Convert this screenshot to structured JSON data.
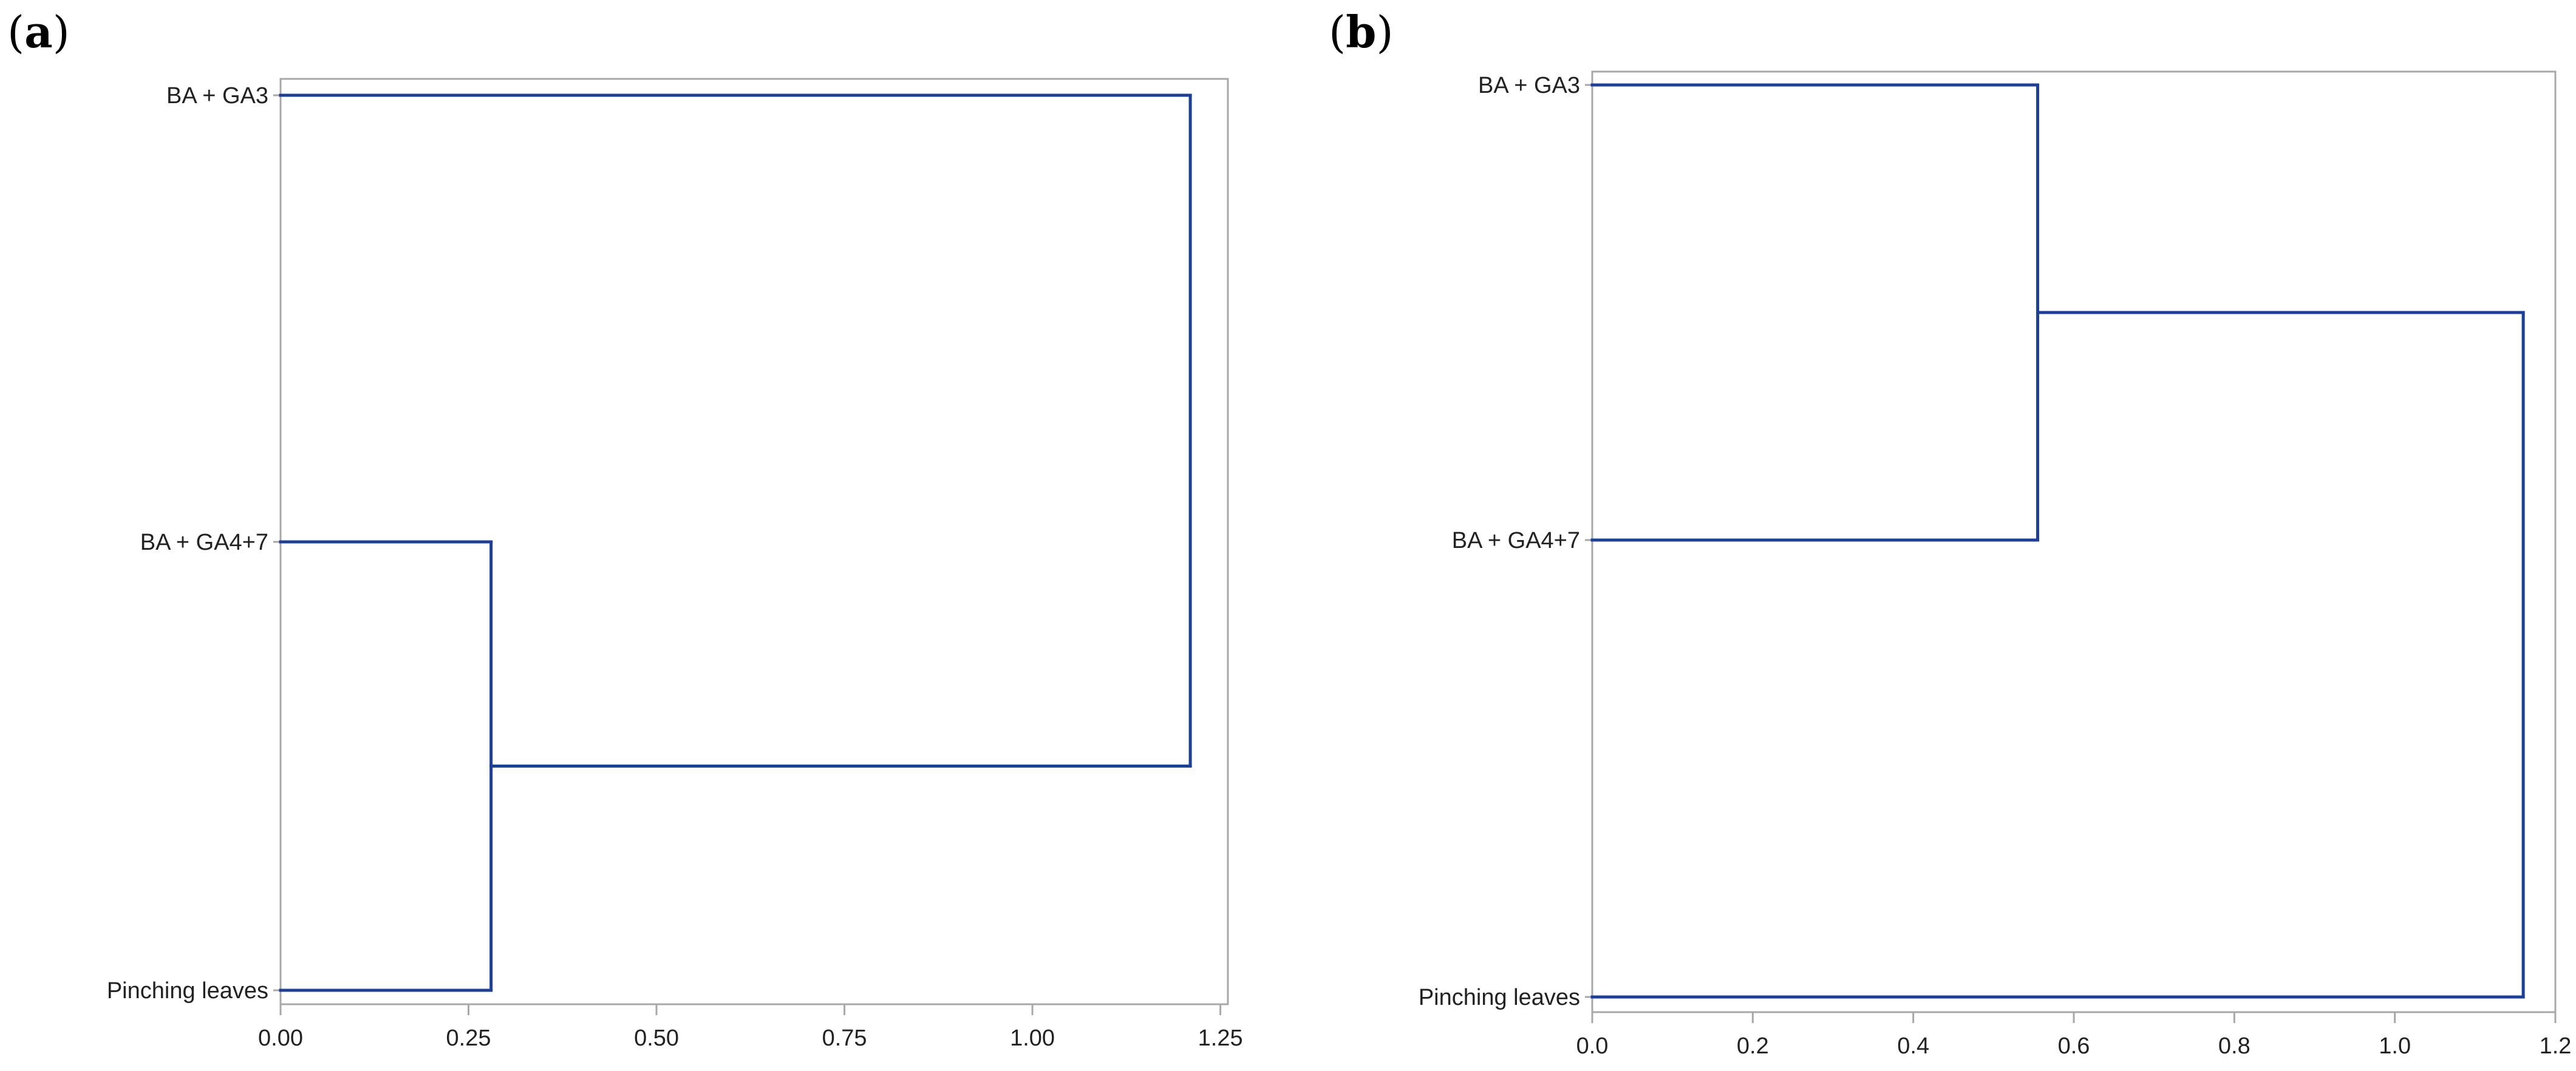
{
  "colors": {
    "branch": "#1b3f9a",
    "frame": "#a8a8a8",
    "text": "#222222"
  },
  "chart_data": [
    {
      "type": "dendrogram",
      "panel_label": {
        "open": "(",
        "letter": "a",
        "close": ")"
      },
      "orientation": "horizontal",
      "leaves": [
        "BA + GA3",
        "BA + GA4+7",
        "Pinching leaves"
      ],
      "merges": [
        {
          "members": [
            "BA + GA4+7",
            "Pinching leaves"
          ],
          "height": 0.28
        },
        {
          "members": [
            "BA + GA3",
            "BA + GA4+7",
            "Pinching leaves"
          ],
          "height": 1.21
        }
      ],
      "xlim": [
        0,
        1.26
      ],
      "ticks": [
        0,
        0.25,
        0.5,
        0.75,
        1.0,
        1.25
      ],
      "tick_labels": [
        "0.00",
        "0.25",
        "0.50",
        "0.75",
        "1.00",
        "1.25"
      ],
      "xlabel": "",
      "ylabel": "",
      "grid": false
    },
    {
      "type": "dendrogram",
      "panel_label": {
        "open": "(",
        "letter": "b",
        "close": ")"
      },
      "orientation": "horizontal",
      "leaves": [
        "BA + GA3",
        "BA + GA4+7",
        "Pinching leaves"
      ],
      "merges": [
        {
          "members": [
            "BA + GA3",
            "BA + GA4+7"
          ],
          "height": 0.555
        },
        {
          "members": [
            "BA + GA3",
            "BA + GA4+7",
            "Pinching leaves"
          ],
          "height": 1.16
        }
      ],
      "xlim": [
        0,
        1.2
      ],
      "ticks": [
        0,
        0.2,
        0.4,
        0.6,
        0.8,
        1.0,
        1.2
      ],
      "tick_labels": [
        "0.0",
        "0.2",
        "0.4",
        "0.6",
        "0.8",
        "1.0",
        "1.2"
      ],
      "xlabel": "",
      "ylabel": "",
      "grid": false
    }
  ]
}
